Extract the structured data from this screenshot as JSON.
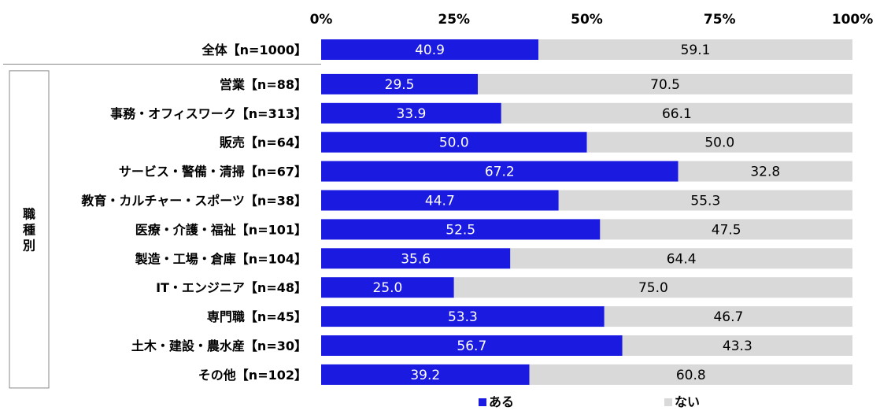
{
  "chart_data": {
    "type": "bar",
    "orientation": "horizontal",
    "stacked": "percent",
    "x_ticks": [
      "0%",
      "25%",
      "50%",
      "75%",
      "100%"
    ],
    "xlim": [
      0,
      100
    ],
    "group_label": "職種別",
    "categories": [
      "全体【n=1000】",
      "営業【n=88】",
      "事務・オフィスワーク【n=313】",
      "販売【n=64】",
      "サービス・警備・清掃【n=67】",
      "教育・カルチャー・スポーツ【n=38】",
      "医療・介護・福祉【n=101】",
      "製造・工場・倉庫【n=104】",
      "IT・エンジニア【n=48】",
      "専門職【n=45】",
      "土木・建設・農水産【n=30】",
      "その他【n=102】"
    ],
    "series": [
      {
        "name": "ある",
        "color": "#1a1ae0",
        "values": [
          40.9,
          29.5,
          33.9,
          50.0,
          67.2,
          44.7,
          52.5,
          35.6,
          25.0,
          53.3,
          56.7,
          39.2
        ],
        "labels": [
          "40.9",
          "29.5",
          "33.9",
          "50.0",
          "67.2",
          "44.7",
          "52.5",
          "35.6",
          "25.0",
          "53.3",
          "56.7",
          "39.2"
        ]
      },
      {
        "name": "ない",
        "color": "#d9d9d9",
        "values": [
          59.1,
          70.5,
          66.1,
          50.0,
          32.8,
          55.3,
          47.5,
          64.4,
          75.0,
          46.7,
          43.3,
          60.8
        ],
        "labels": [
          "59.1",
          "70.5",
          "66.1",
          "50.0",
          "32.8",
          "55.3",
          "47.5",
          "64.4",
          "75.0",
          "46.7",
          "43.3",
          "60.8"
        ]
      }
    ],
    "grid": false,
    "legend_position": "bottom"
  }
}
